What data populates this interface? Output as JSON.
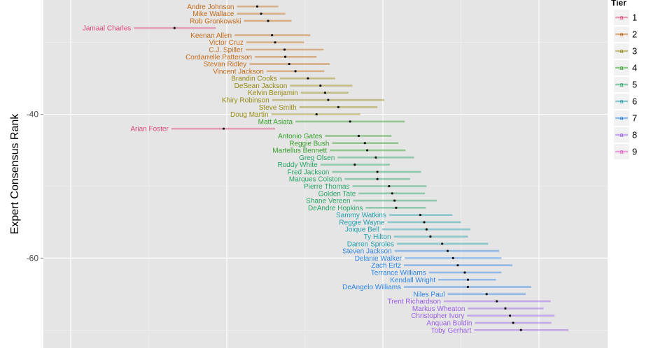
{
  "chart_data": {
    "type": "scatter",
    "subtype": "point-with-horizontal-error-bars",
    "title": "",
    "xlabel": "",
    "ylabel": "Expert Consensus Rank",
    "y_ticks": [
      -40,
      -60
    ],
    "y_tick_labels": [
      "-40",
      "-60"
    ],
    "x_gridlines_major": [
      0,
      20,
      40,
      60
    ],
    "xlim": [
      -3.5,
      68.8
    ],
    "ylim": [
      -72.5,
      -24.1
    ],
    "grid": true,
    "legend": {
      "title": "Tier",
      "placement": "right",
      "key_glyph": "a",
      "entries": [
        "1",
        "2",
        "3",
        "4",
        "5",
        "6",
        "7",
        "8",
        "9"
      ]
    },
    "tier_colors": {
      "1": "#e0467c",
      "2": "#c46a17",
      "3": "#968a12",
      "4": "#34a02a",
      "5": "#25a565",
      "6": "#22a0ae",
      "7": "#2b84e6",
      "8": "#9a5ee6",
      "9": "#e14fc0"
    },
    "points": [
      {
        "name": "Andre Johnson",
        "tier": 2,
        "y": -25,
        "x": 23.9,
        "lo": 21.3,
        "hi": 26.6
      },
      {
        "name": "Mike Wallace",
        "tier": 2,
        "y": -26,
        "x": 24.4,
        "lo": 21.3,
        "hi": 27.5
      },
      {
        "name": "Rob Gronkowski",
        "tier": 2,
        "y": -27,
        "x": 25.3,
        "lo": 22.2,
        "hi": 28.3
      },
      {
        "name": "Jamaal Charles",
        "tier": 1,
        "y": -28,
        "x": 13.3,
        "lo": 8.1,
        "hi": 18.6
      },
      {
        "name": "Keenan Allen",
        "tier": 2,
        "y": -29,
        "x": 25.8,
        "lo": 21.0,
        "hi": 30.7
      },
      {
        "name": "Victor Cruz",
        "tier": 2,
        "y": -30,
        "x": 26.2,
        "lo": 22.5,
        "hi": 29.9
      },
      {
        "name": "C.J. Spiller",
        "tier": 2,
        "y": -31,
        "x": 27.4,
        "lo": 22.4,
        "hi": 32.4
      },
      {
        "name": "Cordarrelle Patterson",
        "tier": 2,
        "y": -32,
        "x": 27.5,
        "lo": 23.6,
        "hi": 31.5
      },
      {
        "name": "Stevan Ridley",
        "tier": 2,
        "y": -33,
        "x": 28.0,
        "lo": 22.9,
        "hi": 33.2
      },
      {
        "name": "Vincent Jackson",
        "tier": 2,
        "y": -34,
        "x": 28.8,
        "lo": 25.1,
        "hi": 32.5
      },
      {
        "name": "Brandin Cooks",
        "tier": 3,
        "y": -35,
        "x": 30.4,
        "lo": 26.8,
        "hi": 33.9
      },
      {
        "name": "DeSean Jackson",
        "tier": 3,
        "y": -36,
        "x": 32.0,
        "lo": 28.1,
        "hi": 36.1
      },
      {
        "name": "Kelvin Benjamin",
        "tier": 3,
        "y": -37,
        "x": 32.6,
        "lo": 29.5,
        "hi": 35.6
      },
      {
        "name": "Khiry Robinson",
        "tier": 3,
        "y": -38,
        "x": 33.0,
        "lo": 25.8,
        "hi": 40.2
      },
      {
        "name": "Steve Smith",
        "tier": 3,
        "y": -39,
        "x": 34.3,
        "lo": 29.3,
        "hi": 39.3
      },
      {
        "name": "Doug Martin",
        "tier": 3,
        "y": -40,
        "x": 31.5,
        "lo": 25.7,
        "hi": 37.1
      },
      {
        "name": "Matt Asiata",
        "tier": 4,
        "y": -41,
        "x": 35.8,
        "lo": 28.8,
        "hi": 42.8
      },
      {
        "name": "Arian Foster",
        "tier": 1,
        "y": -42,
        "x": 19.6,
        "lo": 12.9,
        "hi": 26.2
      },
      {
        "name": "Antonio Gates",
        "tier": 4,
        "y": -43,
        "x": 36.9,
        "lo": 32.6,
        "hi": 41.1
      },
      {
        "name": "Reggie Bush",
        "tier": 4,
        "y": -44,
        "x": 37.7,
        "lo": 33.5,
        "hi": 42.0
      },
      {
        "name": "Martellus Bennett",
        "tier": 4,
        "y": -45,
        "x": 38.0,
        "lo": 33.2,
        "hi": 42.9
      },
      {
        "name": "Greg Olsen",
        "tier": 5,
        "y": -46,
        "x": 39.1,
        "lo": 34.2,
        "hi": 44.0
      },
      {
        "name": "Roddy White",
        "tier": 5,
        "y": -47,
        "x": 36.4,
        "lo": 32.0,
        "hi": 40.9
      },
      {
        "name": "Fred Jackson",
        "tier": 5,
        "y": -48,
        "x": 39.3,
        "lo": 33.5,
        "hi": 44.9
      },
      {
        "name": "Marques Colston",
        "tier": 5,
        "y": -49,
        "x": 39.3,
        "lo": 35.1,
        "hi": 43.5
      },
      {
        "name": "Pierre Thomas",
        "tier": 5,
        "y": -50,
        "x": 40.8,
        "lo": 36.1,
        "hi": 45.6
      },
      {
        "name": "Golden Tate",
        "tier": 5,
        "y": -51,
        "x": 41.2,
        "lo": 36.9,
        "hi": 45.4
      },
      {
        "name": "Shane Vereen",
        "tier": 5,
        "y": -52,
        "x": 41.5,
        "lo": 36.2,
        "hi": 46.9
      },
      {
        "name": "DeAndre Hopkins",
        "tier": 5,
        "y": -53,
        "x": 41.7,
        "lo": 37.8,
        "hi": 45.5
      },
      {
        "name": "Sammy Watkins",
        "tier": 6,
        "y": -54,
        "x": 44.8,
        "lo": 40.8,
        "hi": 48.9
      },
      {
        "name": "Reggie Wayne",
        "tier": 6,
        "y": -55,
        "x": 45.3,
        "lo": 40.6,
        "hi": 50.0
      },
      {
        "name": "Joique Bell",
        "tier": 6,
        "y": -56,
        "x": 45.6,
        "lo": 39.9,
        "hi": 51.2
      },
      {
        "name": "Ty Hilton",
        "tier": 6,
        "y": -57,
        "x": 46.1,
        "lo": 41.4,
        "hi": 50.9
      },
      {
        "name": "Darren Sproles",
        "tier": 6,
        "y": -58,
        "x": 47.6,
        "lo": 41.8,
        "hi": 53.5
      },
      {
        "name": "Steven Jackson",
        "tier": 7,
        "y": -59,
        "x": 48.3,
        "lo": 41.5,
        "hi": 54.9
      },
      {
        "name": "Delanie Walker",
        "tier": 7,
        "y": -60,
        "x": 49.0,
        "lo": 42.8,
        "hi": 55.2
      },
      {
        "name": "Zach Ertz",
        "tier": 7,
        "y": -61,
        "x": 49.6,
        "lo": 42.7,
        "hi": 56.6
      },
      {
        "name": "Terrance Williams",
        "tier": 7,
        "y": -62,
        "x": 50.5,
        "lo": 45.9,
        "hi": 55.2
      },
      {
        "name": "Kendall Wright",
        "tier": 7,
        "y": -63,
        "x": 50.9,
        "lo": 47.1,
        "hi": 54.5
      },
      {
        "name": "DeAngelo Williams",
        "tier": 7,
        "y": -64,
        "x": 50.9,
        "lo": 42.7,
        "hi": 59.0
      },
      {
        "name": "Niles Paul",
        "tier": 7,
        "y": -65,
        "x": 53.3,
        "lo": 48.3,
        "hi": 58.3
      },
      {
        "name": "Trent Richardson",
        "tier": 8,
        "y": -66,
        "x": 54.6,
        "lo": 47.8,
        "hi": 61.5
      },
      {
        "name": "Markus Wheaton",
        "tier": 8,
        "y": -67,
        "x": 55.7,
        "lo": 50.9,
        "hi": 60.6
      },
      {
        "name": "Christopher Ivory",
        "tier": 8,
        "y": -68,
        "x": 56.3,
        "lo": 50.8,
        "hi": 62.0
      },
      {
        "name": "Anquan Boldin",
        "tier": 8,
        "y": -69,
        "x": 56.7,
        "lo": 51.8,
        "hi": 61.6
      },
      {
        "name": "Toby Gerhart",
        "tier": 8,
        "y": -70,
        "x": 57.7,
        "lo": 51.7,
        "hi": 63.8
      }
    ]
  }
}
